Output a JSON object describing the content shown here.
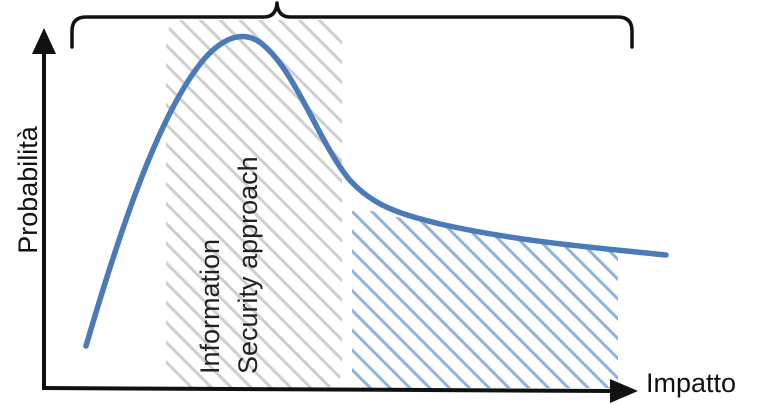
{
  "axes": {
    "y_label": "Probabilità",
    "x_label": "Impatto"
  },
  "regions": {
    "left_label_line1": "Information",
    "left_label_line2": "Security approach"
  },
  "colors": {
    "curve": "#4a7ab8",
    "left_hatch": "#cfcfcf",
    "right_hatch": "#8fb3df",
    "axis": "#111111",
    "brace": "#111111"
  }
}
